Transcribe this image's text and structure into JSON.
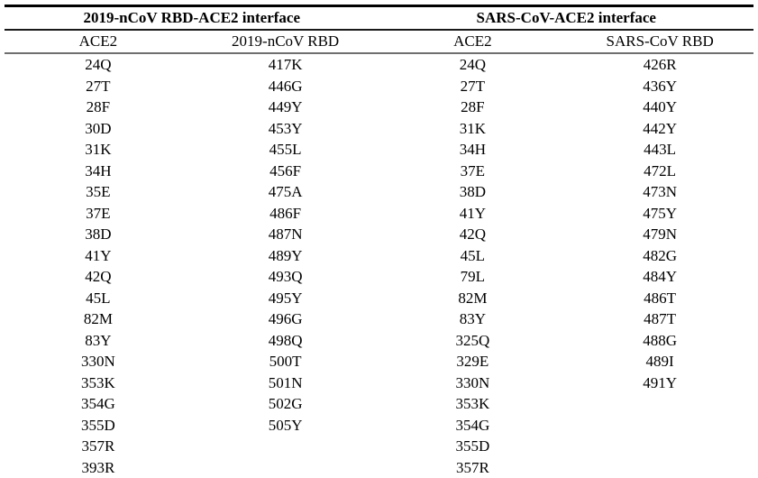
{
  "table": {
    "group_headers": [
      {
        "label": "2019-nCoV RBD-ACE2 interface"
      },
      {
        "label": "SARS-CoV-ACE2 interface"
      }
    ],
    "column_headers": [
      "ACE2",
      "2019-nCoV RBD",
      "ACE2",
      "SARS-CoV RBD"
    ],
    "rows": [
      [
        "24Q",
        "417K",
        "24Q",
        "426R"
      ],
      [
        "27T",
        "446G",
        "27T",
        "436Y"
      ],
      [
        "28F",
        "449Y",
        "28F",
        "440Y"
      ],
      [
        "30D",
        "453Y",
        "31K",
        "442Y"
      ],
      [
        "31K",
        "455L",
        "34H",
        "443L"
      ],
      [
        "34H",
        "456F",
        "37E",
        "472L"
      ],
      [
        "35E",
        "475A",
        "38D",
        "473N"
      ],
      [
        "37E",
        "486F",
        "41Y",
        "475Y"
      ],
      [
        "38D",
        "487N",
        "42Q",
        "479N"
      ],
      [
        "41Y",
        "489Y",
        "45L",
        "482G"
      ],
      [
        "42Q",
        "493Q",
        "79L",
        "484Y"
      ],
      [
        "45L",
        "495Y",
        "82M",
        "486T"
      ],
      [
        "82M",
        "496G",
        "83Y",
        "487T"
      ],
      [
        "83Y",
        "498Q",
        "325Q",
        "488G"
      ],
      [
        "330N",
        "500T",
        "329E",
        "489I"
      ],
      [
        "353K",
        "501N",
        "330N",
        "491Y"
      ],
      [
        "354G",
        "502G",
        "353K",
        ""
      ],
      [
        "355D",
        "505Y",
        "354G",
        ""
      ],
      [
        "357R",
        "",
        "355D",
        ""
      ],
      [
        "393R",
        "",
        "357R",
        ""
      ]
    ]
  },
  "colors": {
    "background": "#ffffff",
    "text": "#000000",
    "thick_rule": "#000000",
    "mid_rule": "#1a1a1a",
    "light_rule": "#6f6f6f"
  }
}
